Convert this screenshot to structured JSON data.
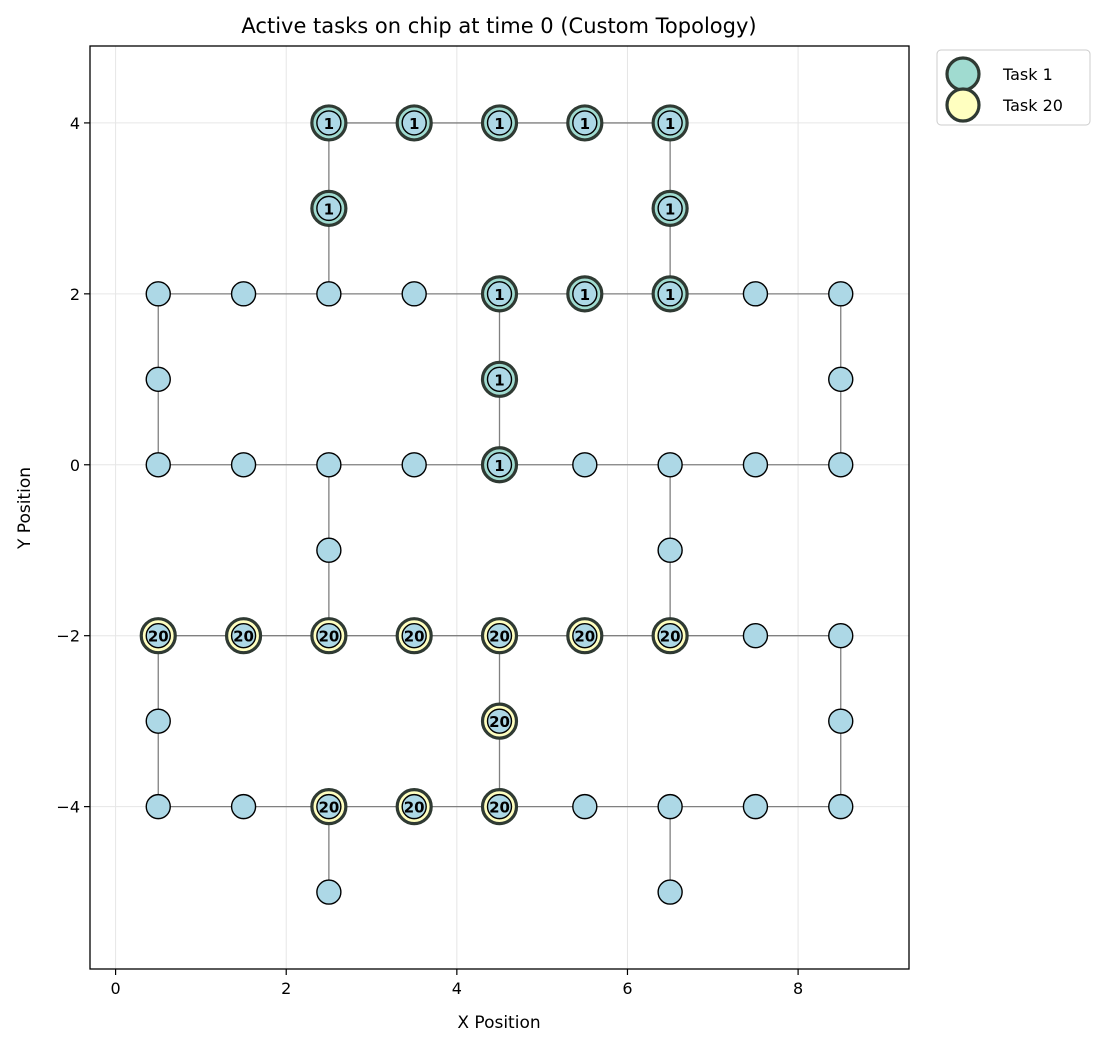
{
  "chart_data": {
    "type": "scatter",
    "title": "Active tasks on chip at time 0 (Custom Topology)",
    "xlabel": "X Position",
    "ylabel": "Y Position",
    "xlim": [
      -0.3,
      9.3
    ],
    "ylim": [
      -5.9,
      4.9
    ],
    "xticks": [
      0,
      2,
      4,
      6,
      8
    ],
    "yticks": [
      -4,
      -2,
      0,
      2,
      4
    ],
    "xtick_labels": [
      "0",
      "2",
      "4",
      "6",
      "8"
    ],
    "ytick_labels": [
      "−4",
      "−2",
      "0",
      "2",
      "4"
    ],
    "grid": true,
    "legend_position": "outside top-right",
    "colors": {
      "node_fill": "#add8e6",
      "edge": "#808080",
      "task_1": "#a0dbd0",
      "task_20": "#ffffc0",
      "task_ring": "#2f3a33"
    },
    "legend": [
      {
        "label": "Task 1",
        "task": "1"
      },
      {
        "label": "Task 20",
        "task": "20"
      }
    ],
    "nodes": [
      {
        "x": 2.5,
        "y": 4,
        "task": "1"
      },
      {
        "x": 3.5,
        "y": 4,
        "task": "1"
      },
      {
        "x": 4.5,
        "y": 4,
        "task": "1"
      },
      {
        "x": 5.5,
        "y": 4,
        "task": "1"
      },
      {
        "x": 6.5,
        "y": 4,
        "task": "1"
      },
      {
        "x": 2.5,
        "y": 3,
        "task": "1"
      },
      {
        "x": 6.5,
        "y": 3,
        "task": "1"
      },
      {
        "x": 0.5,
        "y": 2,
        "task": null
      },
      {
        "x": 1.5,
        "y": 2,
        "task": null
      },
      {
        "x": 2.5,
        "y": 2,
        "task": null
      },
      {
        "x": 3.5,
        "y": 2,
        "task": null
      },
      {
        "x": 4.5,
        "y": 2,
        "task": "1"
      },
      {
        "x": 5.5,
        "y": 2,
        "task": "1"
      },
      {
        "x": 6.5,
        "y": 2,
        "task": "1"
      },
      {
        "x": 7.5,
        "y": 2,
        "task": null
      },
      {
        "x": 8.5,
        "y": 2,
        "task": null
      },
      {
        "x": 0.5,
        "y": 1,
        "task": null
      },
      {
        "x": 4.5,
        "y": 1,
        "task": "1"
      },
      {
        "x": 8.5,
        "y": 1,
        "task": null
      },
      {
        "x": 0.5,
        "y": 0,
        "task": null
      },
      {
        "x": 1.5,
        "y": 0,
        "task": null
      },
      {
        "x": 2.5,
        "y": 0,
        "task": null
      },
      {
        "x": 3.5,
        "y": 0,
        "task": null
      },
      {
        "x": 4.5,
        "y": 0,
        "task": "1"
      },
      {
        "x": 5.5,
        "y": 0,
        "task": null
      },
      {
        "x": 6.5,
        "y": 0,
        "task": null
      },
      {
        "x": 7.5,
        "y": 0,
        "task": null
      },
      {
        "x": 8.5,
        "y": 0,
        "task": null
      },
      {
        "x": 2.5,
        "y": -1,
        "task": null
      },
      {
        "x": 6.5,
        "y": -1,
        "task": null
      },
      {
        "x": 0.5,
        "y": -2,
        "task": "20"
      },
      {
        "x": 1.5,
        "y": -2,
        "task": "20"
      },
      {
        "x": 2.5,
        "y": -2,
        "task": "20"
      },
      {
        "x": 3.5,
        "y": -2,
        "task": "20"
      },
      {
        "x": 4.5,
        "y": -2,
        "task": "20"
      },
      {
        "x": 5.5,
        "y": -2,
        "task": "20"
      },
      {
        "x": 6.5,
        "y": -2,
        "task": "20"
      },
      {
        "x": 7.5,
        "y": -2,
        "task": null
      },
      {
        "x": 8.5,
        "y": -2,
        "task": null
      },
      {
        "x": 0.5,
        "y": -3,
        "task": null
      },
      {
        "x": 4.5,
        "y": -3,
        "task": "20"
      },
      {
        "x": 8.5,
        "y": -3,
        "task": null
      },
      {
        "x": 0.5,
        "y": -4,
        "task": null
      },
      {
        "x": 1.5,
        "y": -4,
        "task": null
      },
      {
        "x": 2.5,
        "y": -4,
        "task": "20"
      },
      {
        "x": 3.5,
        "y": -4,
        "task": "20"
      },
      {
        "x": 4.5,
        "y": -4,
        "task": "20"
      },
      {
        "x": 5.5,
        "y": -4,
        "task": null
      },
      {
        "x": 6.5,
        "y": -4,
        "task": null
      },
      {
        "x": 7.5,
        "y": -4,
        "task": null
      },
      {
        "x": 8.5,
        "y": -4,
        "task": null
      },
      {
        "x": 2.5,
        "y": -5,
        "task": null
      },
      {
        "x": 6.5,
        "y": -5,
        "task": null
      }
    ],
    "edges": [
      [
        [
          2.5,
          4
        ],
        [
          3.5,
          4
        ]
      ],
      [
        [
          3.5,
          4
        ],
        [
          4.5,
          4
        ]
      ],
      [
        [
          4.5,
          4
        ],
        [
          5.5,
          4
        ]
      ],
      [
        [
          5.5,
          4
        ],
        [
          6.5,
          4
        ]
      ],
      [
        [
          2.5,
          4
        ],
        [
          2.5,
          3
        ]
      ],
      [
        [
          2.5,
          3
        ],
        [
          2.5,
          2
        ]
      ],
      [
        [
          6.5,
          4
        ],
        [
          6.5,
          3
        ]
      ],
      [
        [
          6.5,
          3
        ],
        [
          6.5,
          2
        ]
      ],
      [
        [
          0.5,
          2
        ],
        [
          1.5,
          2
        ]
      ],
      [
        [
          1.5,
          2
        ],
        [
          2.5,
          2
        ]
      ],
      [
        [
          2.5,
          2
        ],
        [
          3.5,
          2
        ]
      ],
      [
        [
          3.5,
          2
        ],
        [
          4.5,
          2
        ]
      ],
      [
        [
          4.5,
          2
        ],
        [
          5.5,
          2
        ]
      ],
      [
        [
          5.5,
          2
        ],
        [
          6.5,
          2
        ]
      ],
      [
        [
          6.5,
          2
        ],
        [
          7.5,
          2
        ]
      ],
      [
        [
          7.5,
          2
        ],
        [
          8.5,
          2
        ]
      ],
      [
        [
          0.5,
          2
        ],
        [
          0.5,
          1
        ]
      ],
      [
        [
          0.5,
          1
        ],
        [
          0.5,
          0
        ]
      ],
      [
        [
          4.5,
          2
        ],
        [
          4.5,
          1
        ]
      ],
      [
        [
          4.5,
          1
        ],
        [
          4.5,
          0
        ]
      ],
      [
        [
          8.5,
          2
        ],
        [
          8.5,
          1
        ]
      ],
      [
        [
          8.5,
          1
        ],
        [
          8.5,
          0
        ]
      ],
      [
        [
          0.5,
          0
        ],
        [
          1.5,
          0
        ]
      ],
      [
        [
          1.5,
          0
        ],
        [
          2.5,
          0
        ]
      ],
      [
        [
          2.5,
          0
        ],
        [
          3.5,
          0
        ]
      ],
      [
        [
          3.5,
          0
        ],
        [
          4.5,
          0
        ]
      ],
      [
        [
          4.5,
          0
        ],
        [
          5.5,
          0
        ]
      ],
      [
        [
          5.5,
          0
        ],
        [
          6.5,
          0
        ]
      ],
      [
        [
          6.5,
          0
        ],
        [
          7.5,
          0
        ]
      ],
      [
        [
          7.5,
          0
        ],
        [
          8.5,
          0
        ]
      ],
      [
        [
          2.5,
          0
        ],
        [
          2.5,
          -1
        ]
      ],
      [
        [
          2.5,
          -1
        ],
        [
          2.5,
          -2
        ]
      ],
      [
        [
          6.5,
          0
        ],
        [
          6.5,
          -1
        ]
      ],
      [
        [
          6.5,
          -1
        ],
        [
          6.5,
          -2
        ]
      ],
      [
        [
          0.5,
          -2
        ],
        [
          1.5,
          -2
        ]
      ],
      [
        [
          1.5,
          -2
        ],
        [
          2.5,
          -2
        ]
      ],
      [
        [
          2.5,
          -2
        ],
        [
          3.5,
          -2
        ]
      ],
      [
        [
          3.5,
          -2
        ],
        [
          4.5,
          -2
        ]
      ],
      [
        [
          4.5,
          -2
        ],
        [
          5.5,
          -2
        ]
      ],
      [
        [
          5.5,
          -2
        ],
        [
          6.5,
          -2
        ]
      ],
      [
        [
          6.5,
          -2
        ],
        [
          7.5,
          -2
        ]
      ],
      [
        [
          7.5,
          -2
        ],
        [
          8.5,
          -2
        ]
      ],
      [
        [
          0.5,
          -2
        ],
        [
          0.5,
          -3
        ]
      ],
      [
        [
          0.5,
          -3
        ],
        [
          0.5,
          -4
        ]
      ],
      [
        [
          4.5,
          -2
        ],
        [
          4.5,
          -3
        ]
      ],
      [
        [
          4.5,
          -3
        ],
        [
          4.5,
          -4
        ]
      ],
      [
        [
          8.5,
          -2
        ],
        [
          8.5,
          -3
        ]
      ],
      [
        [
          8.5,
          -3
        ],
        [
          8.5,
          -4
        ]
      ],
      [
        [
          0.5,
          -4
        ],
        [
          1.5,
          -4
        ]
      ],
      [
        [
          1.5,
          -4
        ],
        [
          2.5,
          -4
        ]
      ],
      [
        [
          2.5,
          -4
        ],
        [
          3.5,
          -4
        ]
      ],
      [
        [
          3.5,
          -4
        ],
        [
          4.5,
          -4
        ]
      ],
      [
        [
          4.5,
          -4
        ],
        [
          5.5,
          -4
        ]
      ],
      [
        [
          5.5,
          -4
        ],
        [
          6.5,
          -4
        ]
      ],
      [
        [
          6.5,
          -4
        ],
        [
          7.5,
          -4
        ]
      ],
      [
        [
          7.5,
          -4
        ],
        [
          8.5,
          -4
        ]
      ],
      [
        [
          2.5,
          -4
        ],
        [
          2.5,
          -5
        ]
      ],
      [
        [
          6.5,
          -4
        ],
        [
          6.5,
          -5
        ]
      ]
    ]
  }
}
